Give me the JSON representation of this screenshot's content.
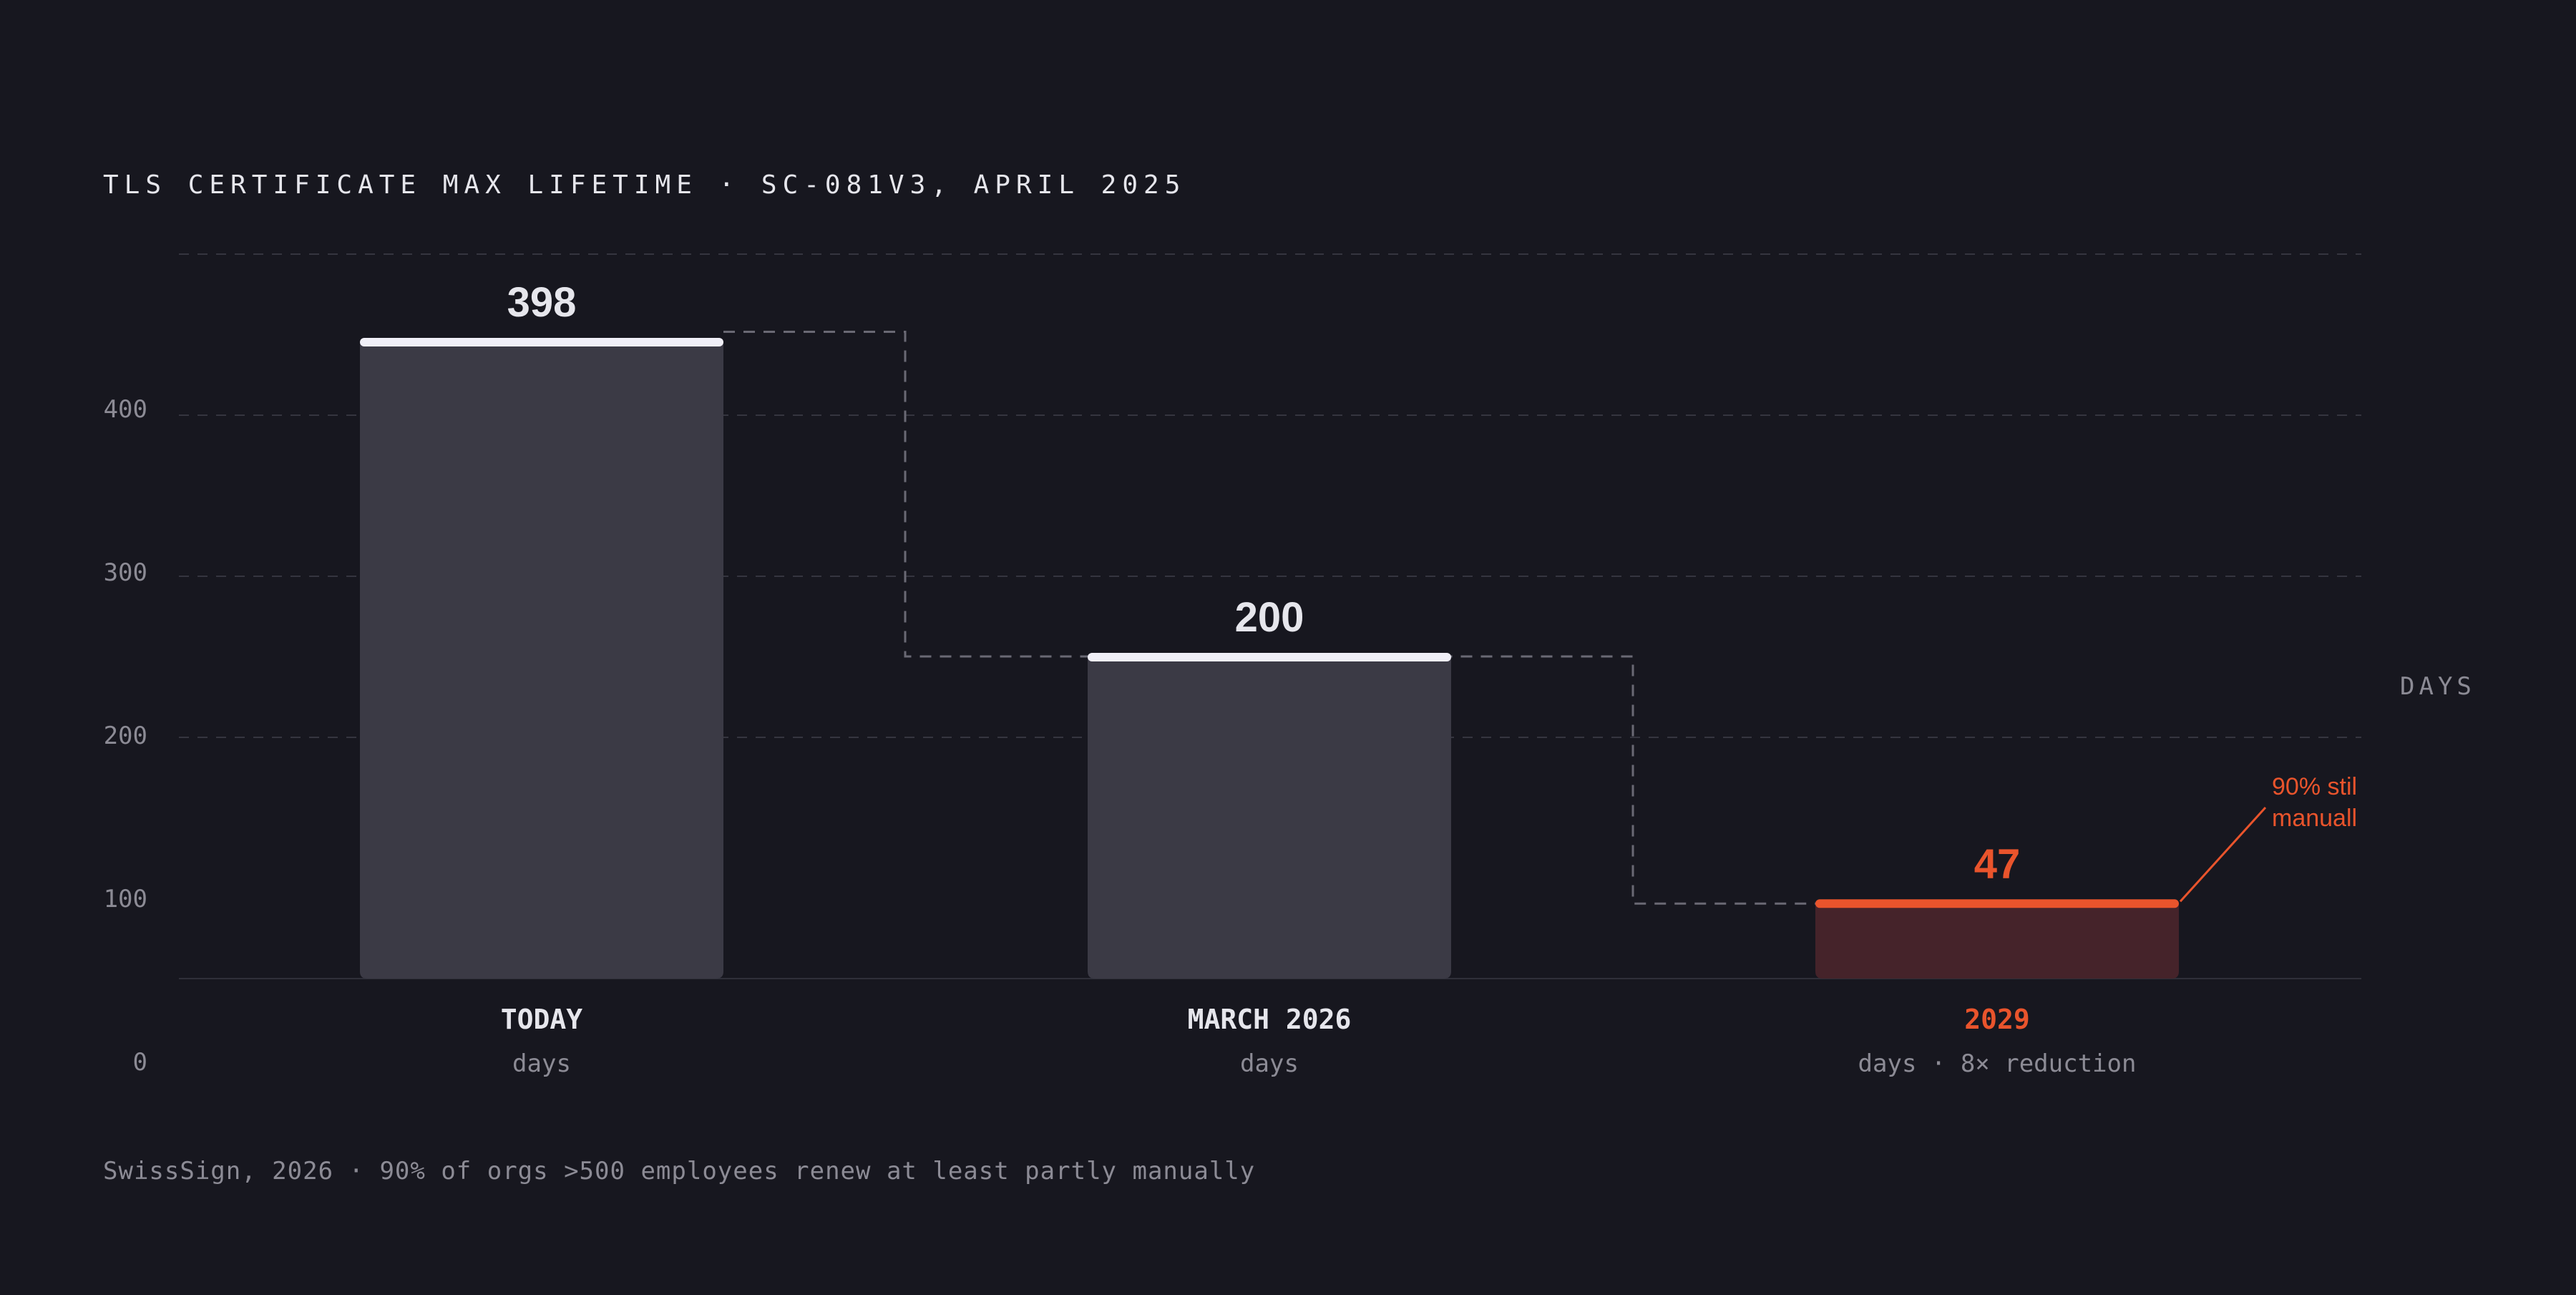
{
  "header": {
    "title": "TLS CERTIFICATE MAX LIFETIME · SC-081V3, APRIL 2025"
  },
  "footer": {
    "source": "SwissSign, 2026 · 90% of orgs >500 employees renew at least partly manually"
  },
  "colors": {
    "background": "#17171f",
    "bar": "#3b3a45",
    "bar_highlight": "#45232a",
    "cap": "#f0eff7",
    "accent": "#e9542c",
    "axis_text": "#8c8b95",
    "label_text": "#e6e6ec",
    "grid": "#35353f"
  },
  "chart_data": {
    "type": "bar",
    "categories": [
      "TODAY",
      "MARCH 2026",
      "2029"
    ],
    "sublabels": [
      "days",
      "days",
      "days · 8× reduction"
    ],
    "values": [
      398,
      200,
      47
    ],
    "value_labels": [
      "398",
      "200",
      "47"
    ],
    "highlight_index": 2,
    "ylabel": "DAYS",
    "ylim": [
      0,
      400
    ],
    "yticks": [
      0,
      100,
      200,
      300,
      400
    ],
    "ytick_labels": [
      "0",
      "100",
      "200",
      "300",
      "400"
    ],
    "grid": true,
    "step_connector": true,
    "annotation": {
      "text_lines": [
        "90% stil",
        "manuall"
      ],
      "target_index": 2
    }
  }
}
